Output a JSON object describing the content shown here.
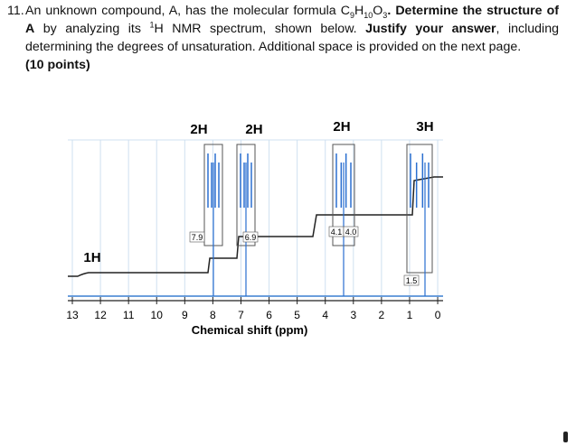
{
  "question": {
    "number": "11.",
    "segments": [
      "An unknown compound, A, has the molecular formula ",
      "C",
      "9",
      "H",
      "10",
      "O",
      "3",
      ". ",
      "Determine the structure of A",
      " by analyzing its ",
      "1",
      "H NMR spectrum, shown below. ",
      "Justify your answer",
      ", including determining the degrees of unsaturation. Additional space is provided on the next page."
    ],
    "points": "(10 points)"
  },
  "spectrum": {
    "integrations": [
      "1H",
      "2H",
      "2H",
      "2H",
      "3H"
    ],
    "inset_labels": [
      "7.9",
      "6.9",
      "4.1",
      "4.0",
      "1.5"
    ],
    "axis_ticks": [
      "13",
      "12",
      "11",
      "10",
      "9",
      "8",
      "7",
      "6",
      "5",
      "4",
      "3",
      "2",
      "1",
      "0"
    ],
    "axis_label": "Chemical shift (ppm)"
  }
}
